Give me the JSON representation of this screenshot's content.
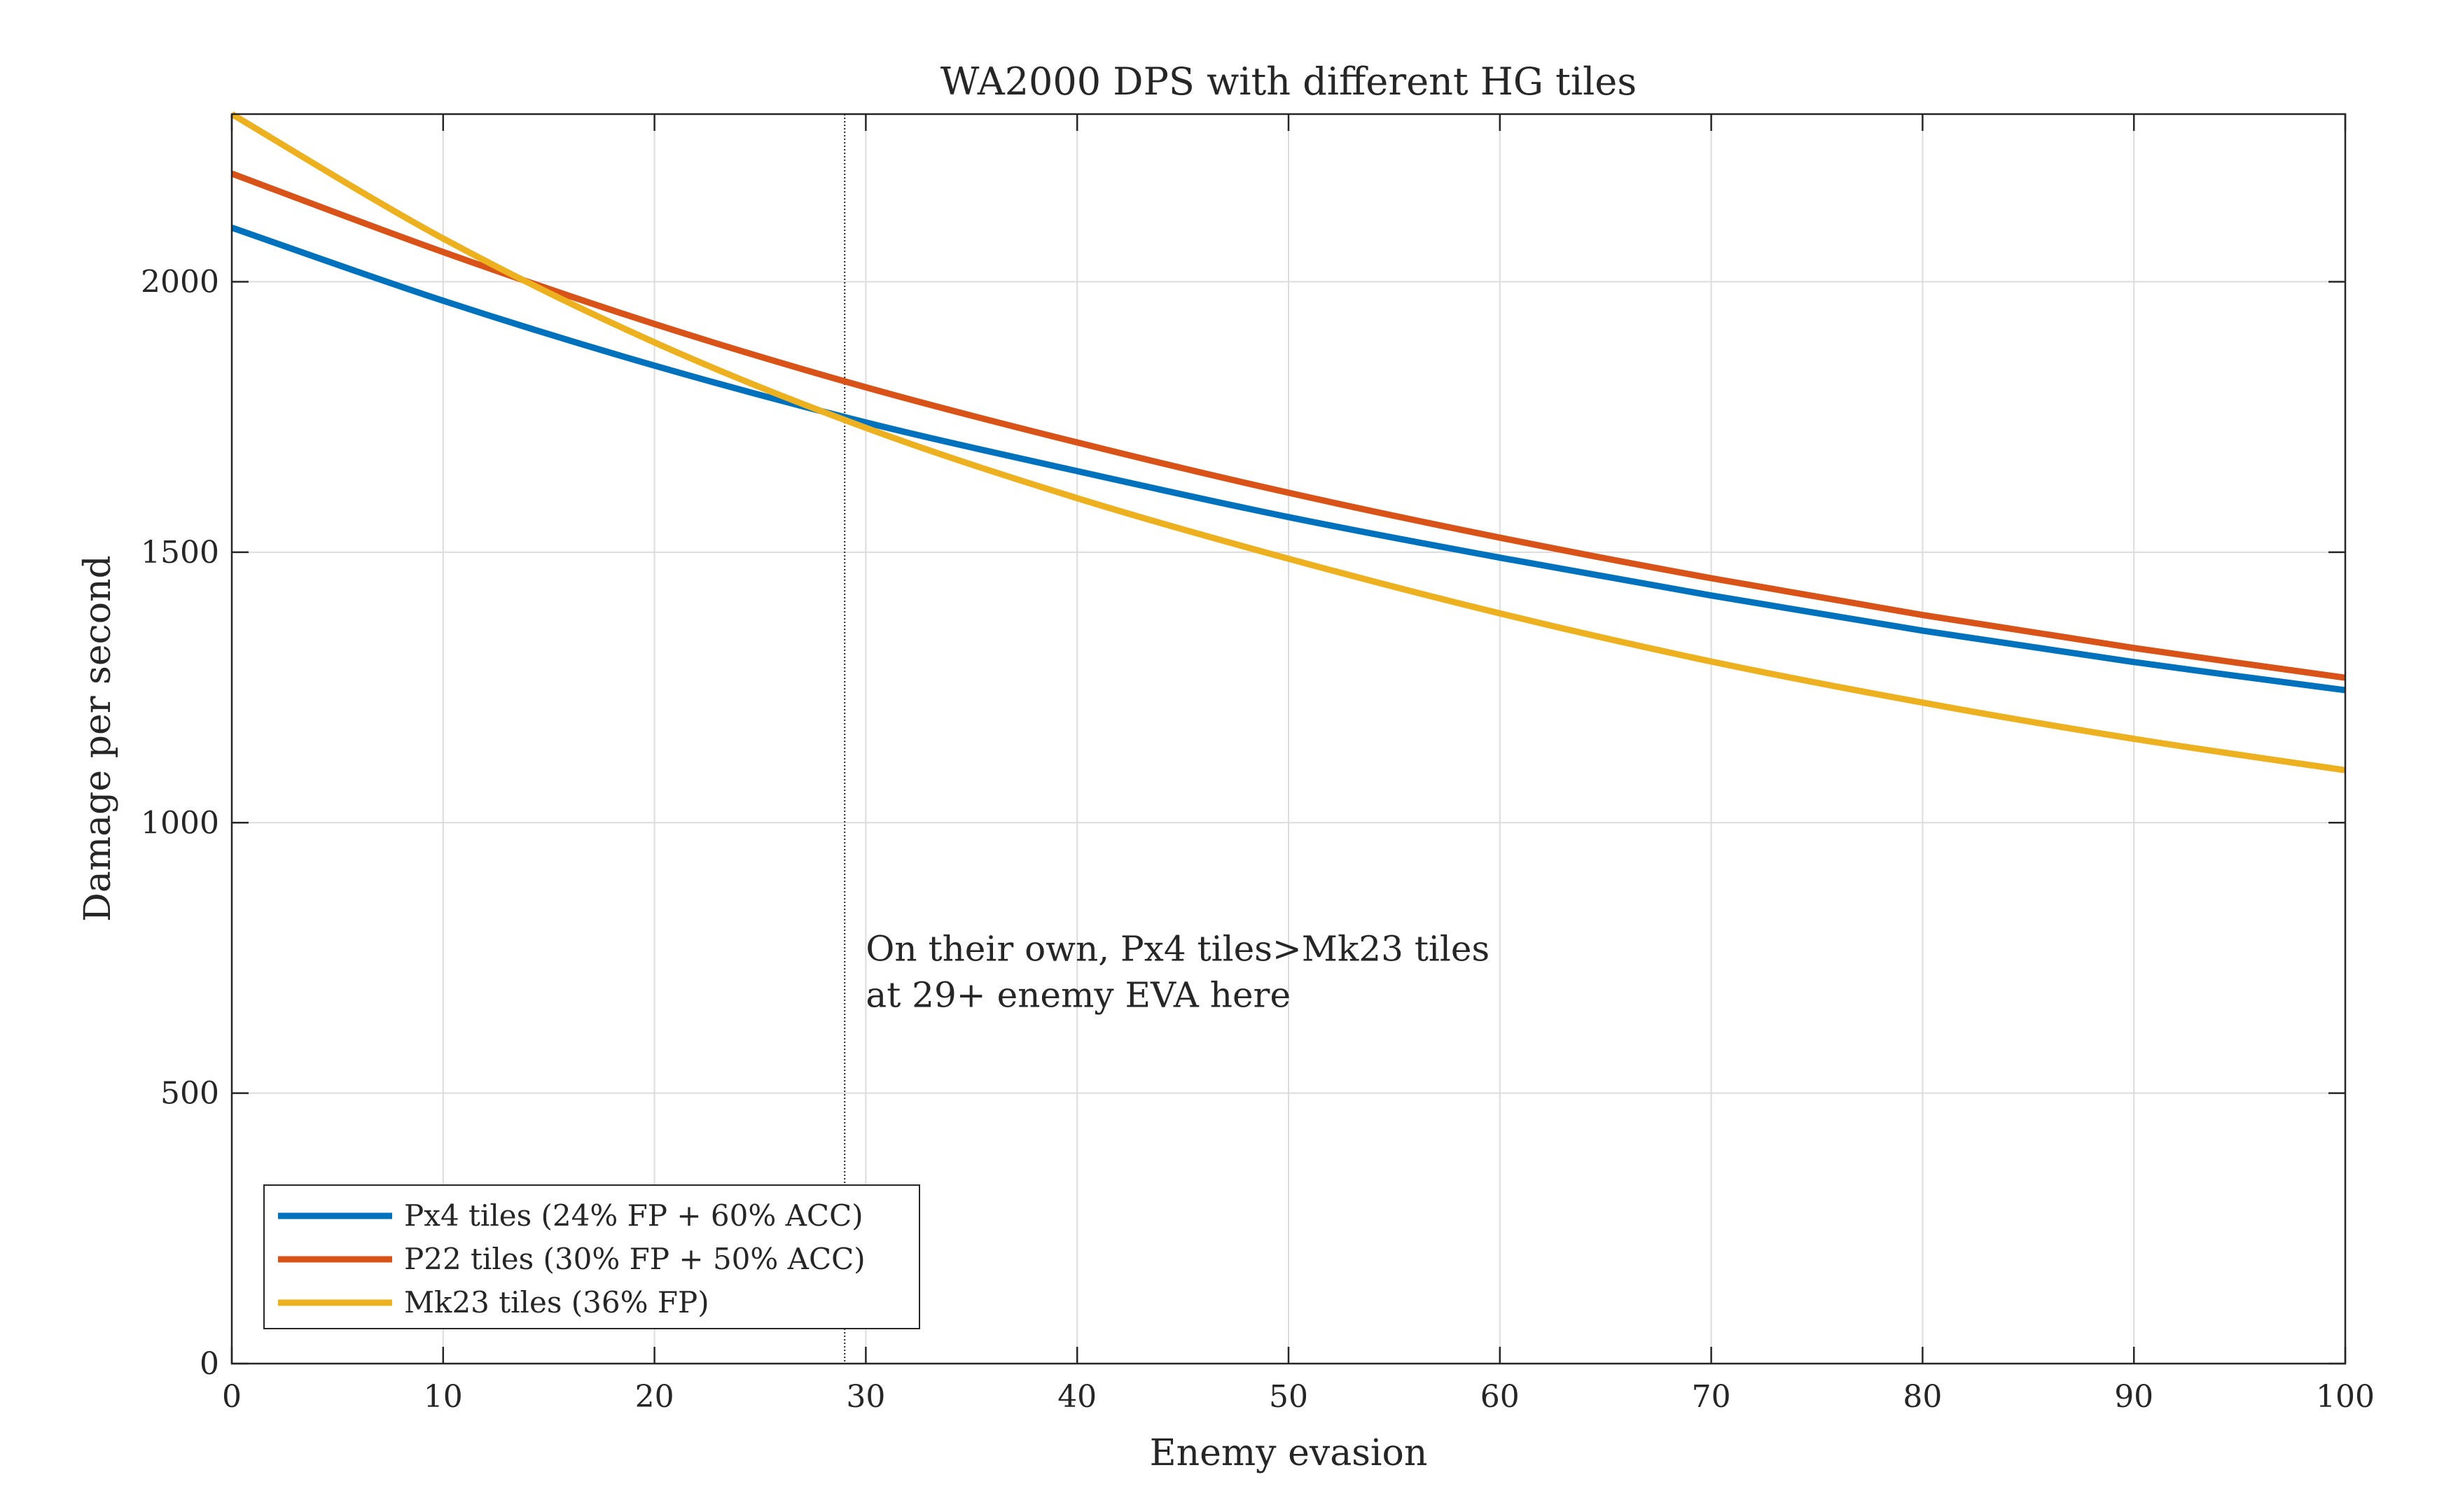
{
  "chart_data": {
    "type": "line",
    "title": "WA2000 DPS with different HG tiles",
    "xlabel": "Enemy evasion",
    "ylabel": "Damage per second",
    "xlim": [
      0,
      100
    ],
    "ylim": [
      0,
      2310
    ],
    "xticks": [
      0,
      10,
      20,
      30,
      40,
      50,
      60,
      70,
      80,
      90,
      100
    ],
    "yticks": [
      0,
      500,
      1000,
      1500,
      2000
    ],
    "grid": true,
    "legend_position": "bottom-left",
    "x": [
      0,
      10,
      20,
      30,
      40,
      50,
      60,
      70,
      80,
      90,
      100
    ],
    "series": [
      {
        "name": "Px4 tiles (24% FP + 60% ACC)",
        "color": "#0072BD",
        "values": [
          2100,
          1965,
          1845,
          1740,
          1650,
          1565,
          1490,
          1420,
          1355,
          1297,
          1245
        ]
      },
      {
        "name": "P22 tiles (30% FP + 50% ACC)",
        "color": "#D95319",
        "values": [
          2200,
          2055,
          1922,
          1805,
          1703,
          1610,
          1527,
          1452,
          1384,
          1323,
          1268
        ]
      },
      {
        "name": "Mk23 tiles (36% FP)",
        "color": "#EDB120",
        "values": [
          2310,
          2080,
          1888,
          1730,
          1600,
          1488,
          1387,
          1298,
          1222,
          1155,
          1097
        ]
      }
    ],
    "reference_line": {
      "x": 29
    },
    "annotation": {
      "line1": "On their own, Px4 tiles>Mk23 tiles",
      "line2": "at 29+ enemy EVA here",
      "x": 30,
      "y": 745
    }
  }
}
